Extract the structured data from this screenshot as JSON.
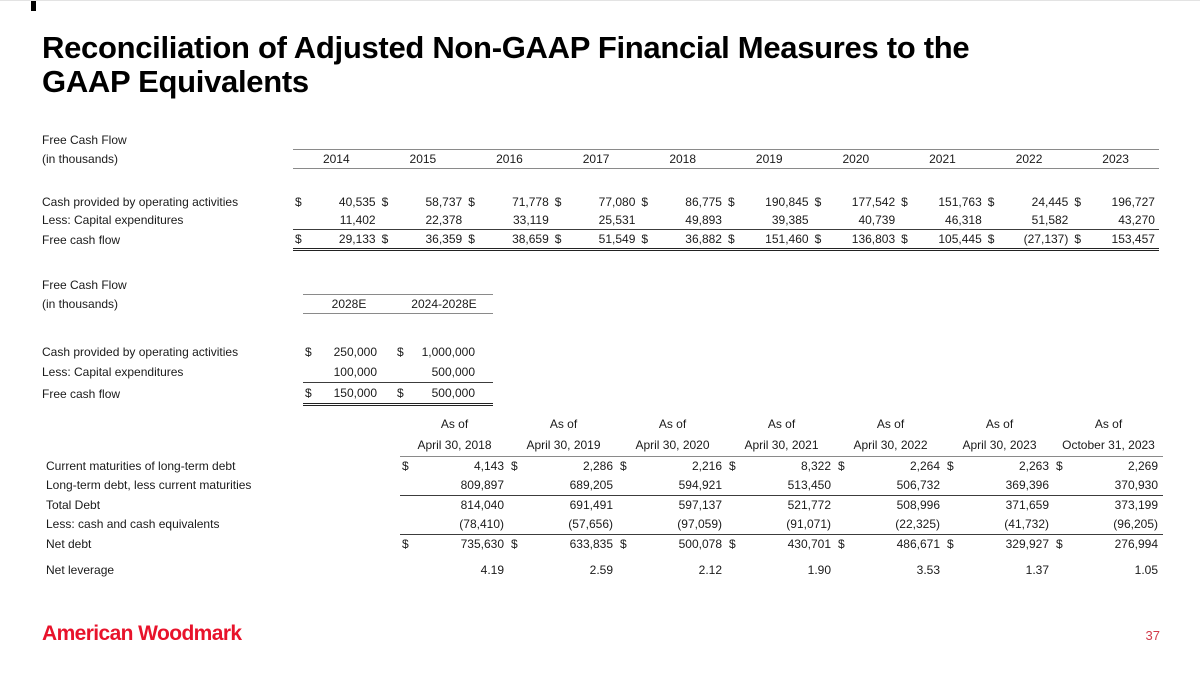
{
  "slide": {
    "title_line1": "Reconciliation of Adjusted Non-GAAP Financial Measures to the",
    "title_line2": "GAAP Equivalents",
    "logo_text": "American Woodmark",
    "page_number": "37",
    "accent_red": "#e8132b",
    "page_number_red": "#d23a49"
  },
  "tables": {
    "fcf_historical": {
      "title_line1": "Free Cash Flow",
      "title_line2": "(in thousands)",
      "columns": [
        "2014",
        "2015",
        "2016",
        "2017",
        "2018",
        "2019",
        "2020",
        "2021",
        "2022",
        "2023"
      ],
      "rows": [
        {
          "label": "Cash provided by operating activities",
          "dollar": true,
          "underline": "none",
          "values": [
            "40,535",
            "58,737",
            "71,778",
            "77,080",
            "86,775",
            "190,845",
            "177,542",
            "151,763",
            "24,445",
            "196,727"
          ]
        },
        {
          "label": "Less: Capital expenditures",
          "dollar": false,
          "underline": "single",
          "values": [
            "11,402",
            "22,378",
            "33,119",
            "25,531",
            "49,893",
            "39,385",
            "40,739",
            "46,318",
            "51,582",
            "43,270"
          ]
        },
        {
          "label": "Free cash flow",
          "dollar": true,
          "underline": "double",
          "values": [
            "29,133",
            "36,359",
            "38,659",
            "51,549",
            "36,882",
            "151,460",
            "136,803",
            "105,445",
            "(27,137)",
            "153,457"
          ]
        }
      ]
    },
    "fcf_projected": {
      "title_line1": "Free Cash Flow",
      "title_line2": "(in thousands)",
      "columns": [
        "2028E",
        "2024-2028E"
      ],
      "rows": [
        {
          "label": "Cash provided by operating activities",
          "dollar": true,
          "underline": "none",
          "values": [
            "250,000",
            "1,000,000"
          ]
        },
        {
          "label": "Less: Capital expenditures",
          "dollar": false,
          "underline": "single",
          "values": [
            "100,000",
            "500,000"
          ]
        },
        {
          "label": "Free cash flow",
          "dollar": true,
          "underline": "double",
          "values": [
            "150,000",
            "500,000"
          ]
        }
      ]
    },
    "net_debt": {
      "columns": [
        {
          "top": "As of",
          "bottom": "April 30, 2018"
        },
        {
          "top": "As of",
          "bottom": "April 30, 2019"
        },
        {
          "top": "As of",
          "bottom": "April 30, 2020"
        },
        {
          "top": "As of",
          "bottom": "April 30, 2021"
        },
        {
          "top": "As of",
          "bottom": "April 30, 2022"
        },
        {
          "top": "As of",
          "bottom": "April 30, 2023"
        },
        {
          "top": "As of",
          "bottom": "October 31, 2023"
        }
      ],
      "rows": [
        {
          "label": "Current maturities of long-term debt",
          "dollar": true,
          "underline": "none",
          "values": [
            "4,143",
            "2,286",
            "2,216",
            "8,322",
            "2,264",
            "2,263",
            "2,269"
          ]
        },
        {
          "label": "Long-term debt, less current maturities",
          "dollar": false,
          "underline": "single",
          "values": [
            "809,897",
            "689,205",
            "594,921",
            "513,450",
            "506,732",
            "369,396",
            "370,930"
          ]
        },
        {
          "label": "Total Debt",
          "dollar": false,
          "underline": "none",
          "values": [
            "814,040",
            "691,491",
            "597,137",
            "521,772",
            "508,996",
            "371,659",
            "373,199"
          ]
        },
        {
          "label": "Less: cash and cash equivalents",
          "dollar": false,
          "underline": "single",
          "values": [
            "(78,410)",
            "(57,656)",
            "(97,059)",
            "(91,071)",
            "(22,325)",
            "(41,732)",
            "(96,205)"
          ]
        },
        {
          "label": "Net debt",
          "dollar": true,
          "underline": "none",
          "values": [
            "735,630",
            "633,835",
            "500,078",
            "430,701",
            "486,671",
            "329,927",
            "276,994"
          ]
        }
      ],
      "leverage_row": {
        "label": "Net leverage",
        "values": [
          "4.19",
          "2.59",
          "2.12",
          "1.90",
          "3.53",
          "1.37",
          "1.05"
        ]
      }
    }
  }
}
